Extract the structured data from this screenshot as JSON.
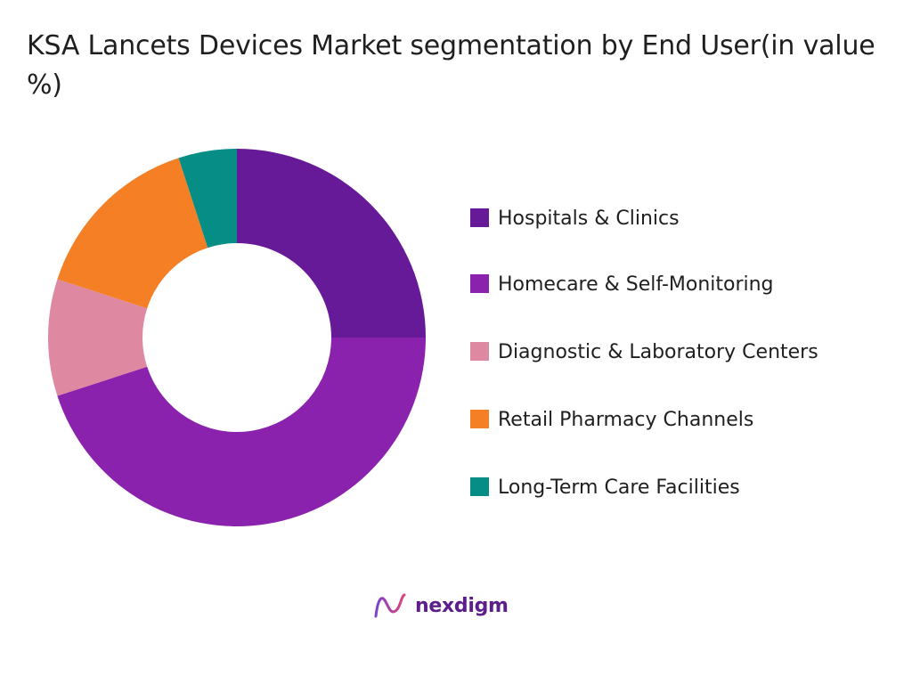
{
  "chart_data": {
    "type": "pie",
    "title": "KSA Lancets Devices Market segmentation by End User(in value %)",
    "categories": [
      "Hospitals & Clinics",
      "Homecare & Self-Monitoring",
      "Diagnostic & Laboratory Centers",
      "Retail Pharmacy Channels",
      "Long-Term Care Facilities"
    ],
    "values": [
      25,
      45,
      10,
      15,
      5
    ],
    "colors": [
      "#671a97",
      "#8a22ad",
      "#df88a1",
      "#f57f25",
      "#058d86"
    ],
    "donut": true,
    "legend_position": "right"
  },
  "logo": {
    "text": "nexdigm",
    "icon": "nexdigm-logo-icon",
    "color": "#5b1e8a"
  }
}
